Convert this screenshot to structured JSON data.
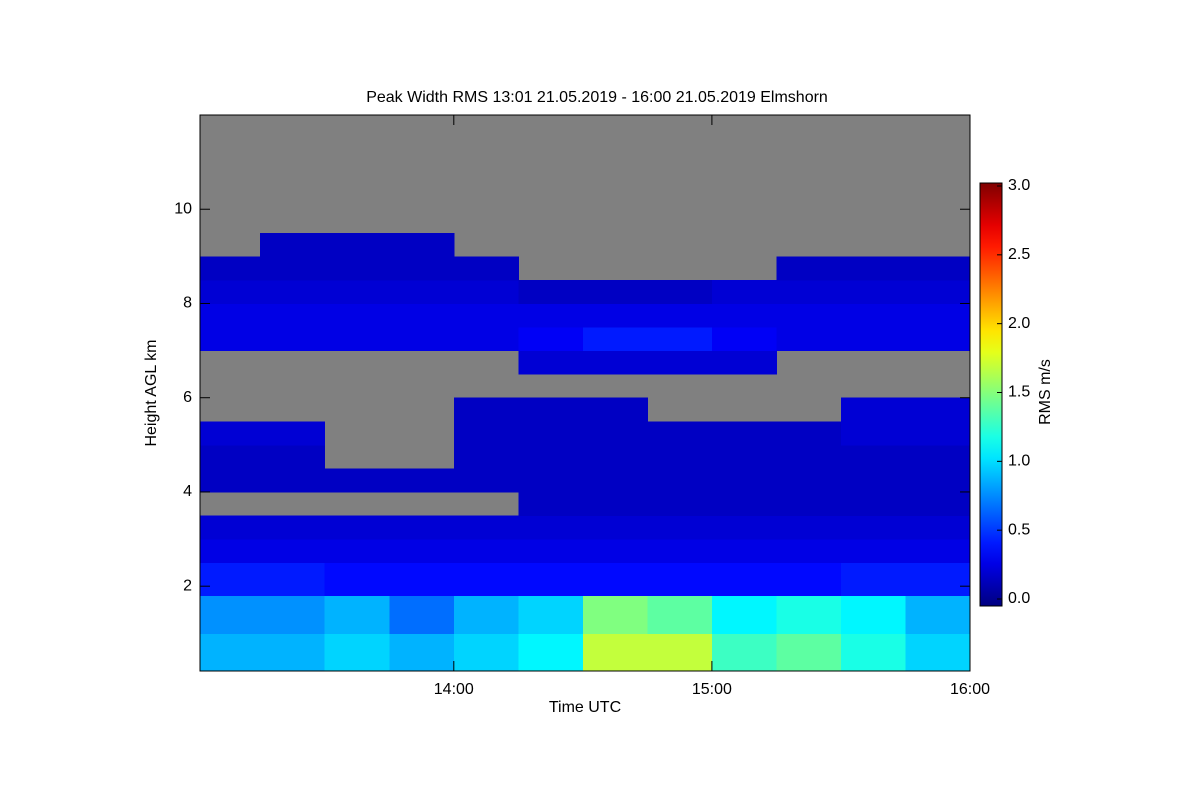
{
  "chart_data": {
    "type": "heatmap",
    "title": "Peak Width RMS   13:01 21.05.2019 - 16:00 21.05.2019 Elmshorn",
    "x_label": "Time UTC",
    "y_label": "Height AGL km",
    "colorbar_label": "RMS m/s",
    "colormap": "jet",
    "missing_color": "#808080",
    "xlim": [
      "13:01",
      "16:00"
    ],
    "xticks": [
      "14:00",
      "15:00",
      "16:00"
    ],
    "ylim": [
      0.2,
      12
    ],
    "yticks": [
      2,
      4,
      6,
      8,
      10
    ],
    "clim": [
      0,
      3
    ],
    "cticks": [
      {
        "value": 0,
        "label": "0.0"
      },
      {
        "value": 0.5,
        "label": "0.5"
      },
      {
        "value": 1,
        "label": "1.0"
      },
      {
        "value": 1.5,
        "label": "1.5"
      },
      {
        "value": 2,
        "label": "2.0"
      },
      {
        "value": 2.5,
        "label": "2.5"
      },
      {
        "value": 3,
        "label": "3.0"
      }
    ],
    "x_bins": [
      "13:01",
      "13:15",
      "13:30",
      "13:45",
      "14:00",
      "14:15",
      "14:30",
      "14:45",
      "15:00",
      "15:15",
      "15:30",
      "15:45",
      "16:00"
    ],
    "y_bins": [
      0.2,
      1,
      1.8,
      2.5,
      3,
      3.5,
      4,
      4.5,
      5,
      5.5,
      6,
      6.5,
      7,
      7.5,
      8,
      8.5,
      9,
      9.5,
      12
    ],
    "z": [
      [
        0.9,
        0.9,
        1.0,
        0.9,
        1.0,
        1.1,
        1.7,
        1.7,
        1.3,
        1.4,
        1.2,
        1.0
      ],
      [
        0.8,
        0.8,
        0.9,
        0.7,
        0.9,
        1.0,
        1.5,
        1.4,
        1.1,
        1.2,
        1.1,
        0.9
      ],
      [
        0.45,
        0.45,
        0.4,
        0.4,
        0.4,
        0.4,
        0.4,
        0.4,
        0.4,
        0.4,
        0.45,
        0.45
      ],
      [
        0.3,
        0.3,
        0.3,
        0.3,
        0.3,
        0.3,
        0.3,
        0.3,
        0.3,
        0.3,
        0.3,
        0.3
      ],
      [
        0.25,
        0.25,
        0.25,
        0.25,
        0.25,
        0.25,
        0.25,
        0.25,
        0.25,
        0.25,
        0.25,
        0.25
      ],
      [
        null,
        null,
        null,
        null,
        null,
        0.2,
        0.2,
        0.2,
        0.2,
        0.2,
        0.2,
        0.2
      ],
      [
        0.2,
        0.2,
        0.2,
        0.2,
        0.2,
        0.2,
        0.2,
        0.2,
        0.2,
        0.2,
        0.2,
        0.2
      ],
      [
        0.2,
        0.2,
        null,
        null,
        0.2,
        0.2,
        0.2,
        0.2,
        0.2,
        0.2,
        0.2,
        0.2
      ],
      [
        0.25,
        0.25,
        null,
        null,
        0.2,
        0.2,
        0.2,
        0.2,
        0.2,
        0.2,
        0.25,
        0.25
      ],
      [
        null,
        null,
        null,
        null,
        0.2,
        0.2,
        0.2,
        null,
        null,
        null,
        0.25,
        0.25
      ],
      [
        null,
        null,
        null,
        null,
        null,
        null,
        null,
        null,
        null,
        null,
        null,
        null
      ],
      [
        null,
        null,
        null,
        null,
        null,
        0.25,
        0.25,
        0.25,
        0.25,
        null,
        null,
        null
      ],
      [
        0.3,
        0.3,
        0.3,
        0.3,
        0.3,
        0.35,
        0.45,
        0.45,
        0.35,
        0.3,
        0.3,
        0.3
      ],
      [
        0.3,
        0.3,
        0.3,
        0.3,
        0.3,
        0.3,
        0.3,
        0.3,
        0.3,
        0.3,
        0.3,
        0.3
      ],
      [
        0.25,
        0.25,
        0.25,
        0.25,
        0.25,
        0.2,
        0.2,
        0.2,
        0.25,
        0.25,
        0.25,
        0.25
      ],
      [
        0.2,
        0.2,
        0.2,
        0.2,
        0.2,
        null,
        null,
        null,
        null,
        0.2,
        0.2,
        0.2
      ],
      [
        null,
        0.2,
        0.2,
        0.2,
        null,
        null,
        null,
        null,
        null,
        null,
        null,
        null
      ],
      [
        null,
        null,
        null,
        null,
        null,
        null,
        null,
        null,
        null,
        null,
        null,
        null
      ]
    ]
  }
}
